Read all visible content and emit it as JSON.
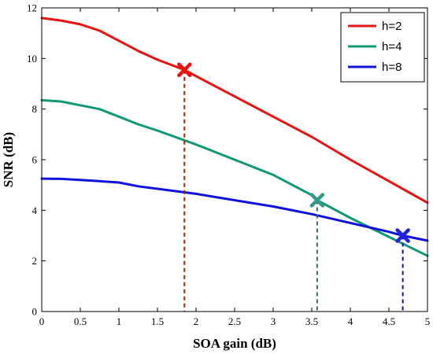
{
  "chart_data": {
    "type": "line",
    "xlabel": "SOA gain (dB)",
    "ylabel": "SNR (dB)",
    "xlim": [
      0,
      5
    ],
    "ylim": [
      0,
      12
    ],
    "xticks": [
      0,
      0.5,
      1,
      1.5,
      2,
      2.5,
      3,
      3.5,
      4,
      4.5,
      5
    ],
    "xtick_labels": [
      "0",
      "0.5",
      "1",
      "1.5",
      "2",
      "2.5",
      "3",
      "3.5",
      "4",
      "4.5",
      "5"
    ],
    "yticks": [
      0,
      2,
      4,
      6,
      8,
      10,
      12
    ],
    "ytick_labels": [
      "0",
      "2",
      "4",
      "6",
      "8",
      "10",
      "12"
    ],
    "grid": false,
    "legend_position": "top-right",
    "series": [
      {
        "name": "h=2",
        "color": "#ee1111",
        "x": [
          0,
          0.25,
          0.5,
          0.75,
          1.0,
          1.25,
          1.5,
          1.85,
          2.0,
          2.5,
          3.0,
          3.5,
          4.0,
          4.5,
          5.0
        ],
        "y": [
          11.6,
          11.5,
          11.35,
          11.1,
          10.7,
          10.3,
          9.95,
          9.55,
          9.3,
          8.5,
          7.7,
          6.9,
          6.0,
          5.15,
          4.3
        ]
      },
      {
        "name": "h=4",
        "color": "#119977",
        "x": [
          0,
          0.25,
          0.5,
          0.75,
          1.0,
          1.25,
          1.5,
          2.0,
          2.5,
          3.0,
          3.5,
          3.57,
          4.0,
          4.5,
          5.0
        ],
        "y": [
          8.35,
          8.3,
          8.15,
          8.0,
          7.7,
          7.4,
          7.15,
          6.6,
          6.0,
          5.4,
          4.6,
          4.4,
          3.7,
          2.95,
          2.2
        ]
      },
      {
        "name": "h=8",
        "color": "#1111dd",
        "x": [
          0,
          0.25,
          0.5,
          0.75,
          1.0,
          1.25,
          1.5,
          2.0,
          2.5,
          3.0,
          3.5,
          4.0,
          4.5,
          4.68,
          5.0
        ],
        "y": [
          5.25,
          5.24,
          5.2,
          5.15,
          5.1,
          4.95,
          4.85,
          4.65,
          4.4,
          4.15,
          3.85,
          3.5,
          3.15,
          3.0,
          2.8
        ]
      }
    ],
    "markers": [
      {
        "series": "h=2",
        "x": 1.85,
        "y": 9.55,
        "color": "#ee1111",
        "line_color": "#aa2200"
      },
      {
        "series": "h=4",
        "x": 3.57,
        "y": 4.4,
        "color": "#339988",
        "line_color": "#336666"
      },
      {
        "series": "h=8",
        "x": 4.68,
        "y": 3.0,
        "color": "#2222dd",
        "line_color": "#1111aa"
      }
    ]
  }
}
